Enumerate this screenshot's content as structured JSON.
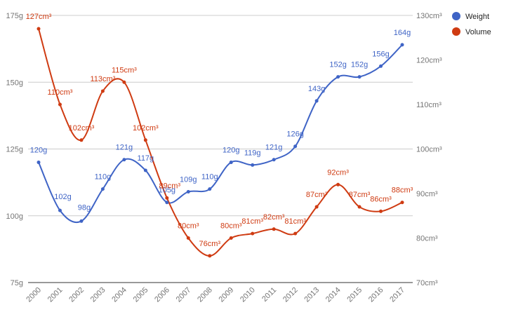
{
  "chart_data": {
    "type": "line",
    "categories": [
      "2000",
      "2001",
      "2002",
      "2003",
      "2004",
      "2005",
      "2006",
      "2007",
      "2008",
      "2009",
      "2010",
      "2011",
      "2012",
      "2013",
      "2014",
      "2015",
      "2016",
      "2017"
    ],
    "series": [
      {
        "name": "Weight",
        "axis": "left",
        "color": "#3f64c6",
        "values": [
          120,
          102,
          98,
          110,
          121,
          117,
          105,
          109,
          110,
          120,
          119,
          121,
          126,
          143,
          152,
          152,
          156,
          164
        ],
        "labels": [
          "120g",
          "102g",
          "98g",
          "110g",
          "121g",
          "117g",
          "105g",
          "109g",
          "110g",
          "120g",
          "119g",
          "121g",
          "126g",
          "143g",
          "152g",
          "152g",
          "156g",
          "164g"
        ]
      },
      {
        "name": "Volume",
        "axis": "right",
        "color": "#cf3b12",
        "values": [
          127,
          110,
          102,
          113,
          115,
          102,
          89,
          80,
          76,
          80,
          81,
          82,
          81,
          87,
          92,
          87,
          86,
          88
        ],
        "labels": [
          "127cm³",
          "110cm³",
          "102cm³",
          "113cm³",
          "115cm³",
          "102cm³",
          "89cm³",
          "80cm³",
          "76cm³",
          "80cm³",
          "81cm³",
          "82cm³",
          "81cm³",
          "87cm³",
          "92cm³",
          "87cm³",
          "86cm³",
          "88cm³"
        ]
      }
    ],
    "y_left": {
      "ticks": [
        75,
        100,
        125,
        150,
        175
      ],
      "tick_labels": [
        "75g",
        "100g",
        "125g",
        "150g",
        "175g"
      ],
      "ylim": [
        75,
        175
      ]
    },
    "y_right": {
      "ticks": [
        70,
        80,
        90,
        100,
        110,
        120,
        130
      ],
      "tick_labels": [
        "70cm³",
        "80cm³",
        "90cm³",
        "100cm³",
        "110cm³",
        "120cm³",
        "130cm³"
      ],
      "ylim": [
        70,
        130
      ]
    },
    "legend": {
      "placement": "top-right",
      "entries": [
        "Weight",
        "Volume"
      ]
    },
    "grid": true,
    "curve": "smooth"
  }
}
